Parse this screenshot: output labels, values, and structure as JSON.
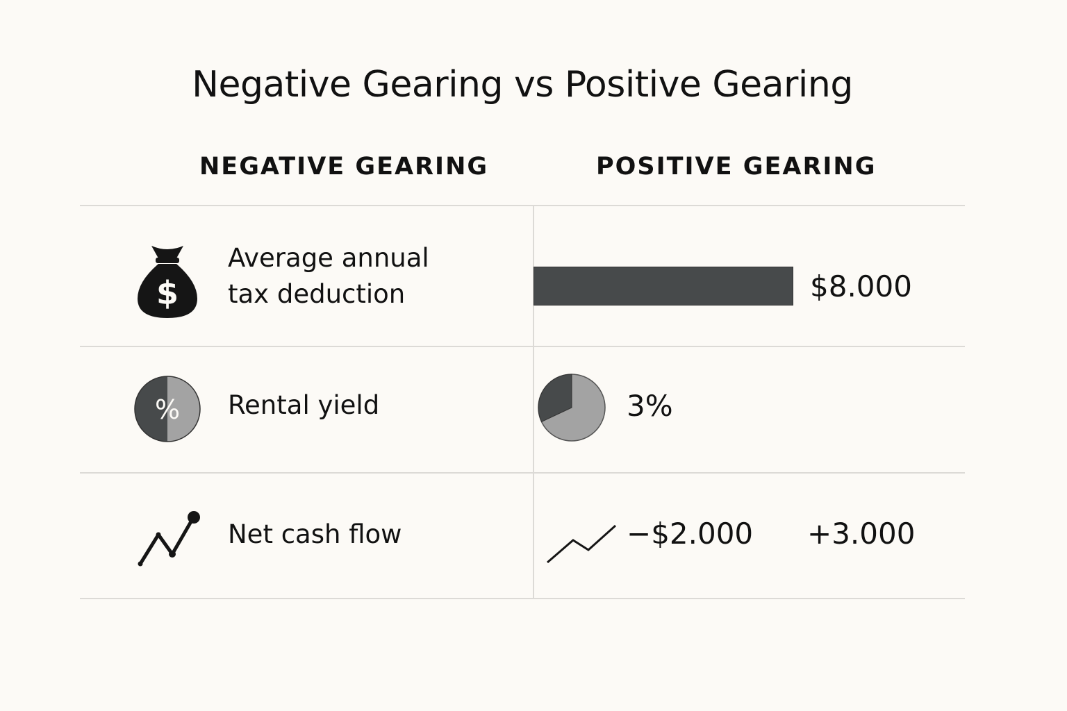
{
  "title": "Negative Gearing vs Positive Gearing",
  "columns": {
    "negative": "NEGATIVE GEARING",
    "positive": "POSITIVE GEARING"
  },
  "rows": [
    {
      "label_lines": [
        "Average annual",
        "tax deduction"
      ],
      "icon": "money-bag-icon",
      "value": "$8.000",
      "bar_fraction": 1.0
    },
    {
      "label_lines": [
        "Rental yield"
      ],
      "icon": "percent-pie-icon",
      "value": "3%",
      "pie_dark_fraction": 0.32
    },
    {
      "label_lines": [
        "Net cash flow"
      ],
      "icon": "trend-line-icon",
      "value_negative": "−$2.000",
      "value_positive": "+3.000"
    }
  ],
  "colors": {
    "dark": "#474a4b",
    "light": "#a3a3a3",
    "icon_black": "#151515",
    "divider": "#dcdad6",
    "background": "#fcfaf6"
  }
}
